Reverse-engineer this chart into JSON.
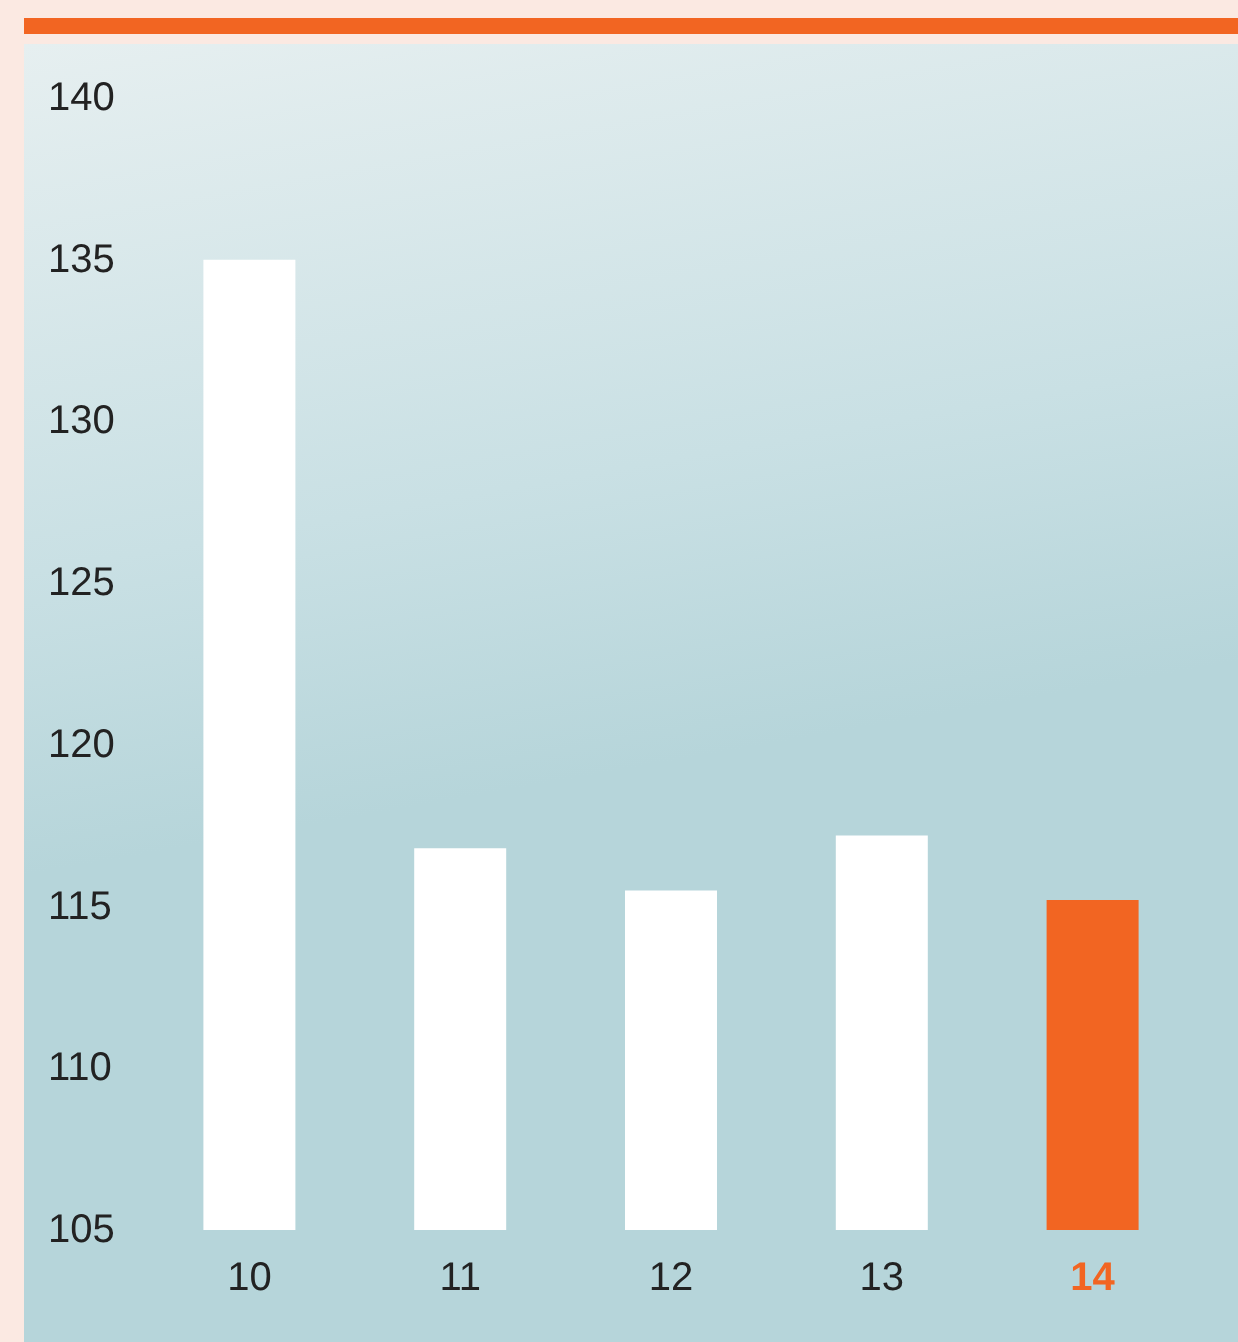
{
  "chart_data": {
    "type": "bar",
    "categories": [
      "10",
      "11",
      "12",
      "13",
      "14"
    ],
    "values": [
      135,
      116.8,
      115.5,
      117.2,
      115.2
    ],
    "colors": [
      "#ffffff",
      "#ffffff",
      "#ffffff",
      "#ffffff",
      "#f26522"
    ],
    "ylim": [
      105,
      140
    ],
    "yticks": [
      105,
      110,
      115,
      120,
      125,
      130,
      135,
      140
    ],
    "grid": false
  }
}
